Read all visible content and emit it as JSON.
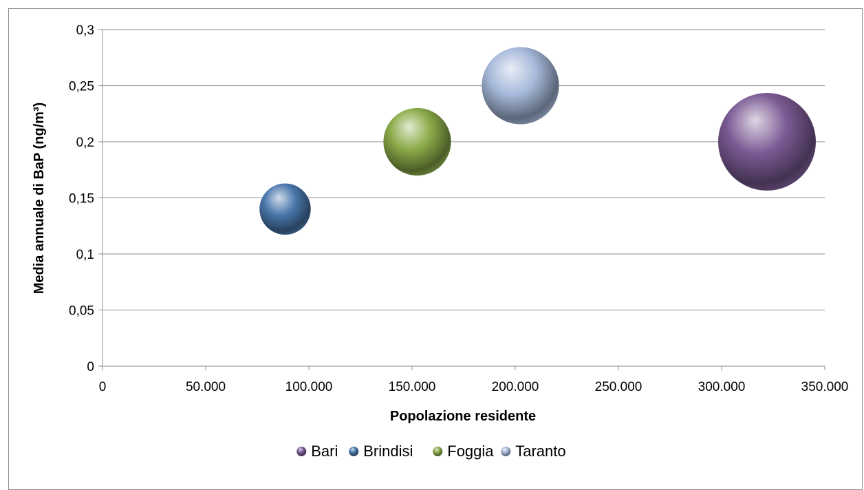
{
  "chart_data": {
    "type": "bubble",
    "title": "",
    "xlabel": "Popolazione residente",
    "ylabel": "Media annuale di BaP (ng/m³)",
    "xlim": [
      0,
      350000
    ],
    "ylim": [
      0,
      0.3
    ],
    "x_ticks": [
      0,
      50000,
      100000,
      150000,
      200000,
      250000,
      300000,
      350000
    ],
    "x_tick_labels": [
      "0",
      "50.000",
      "100.000",
      "150.000",
      "200.000",
      "250.000",
      "300.000",
      "350.000"
    ],
    "y_ticks": [
      0,
      0.05,
      0.1,
      0.15,
      0.2,
      0.25,
      0.3
    ],
    "y_tick_labels": [
      "0",
      "0,05",
      "0,1",
      "0,15",
      "0,2",
      "0,25",
      "0,3"
    ],
    "grid": "horizontal",
    "legend_position": "bottom",
    "series": [
      {
        "name": "Bari",
        "x": 322000,
        "y": 0.2,
        "size": 320000,
        "color": "#7a5a94"
      },
      {
        "name": "Brindisi",
        "x": 88500,
        "y": 0.14,
        "size": 88000,
        "color": "#4a77ab"
      },
      {
        "name": "Foggia",
        "x": 152500,
        "y": 0.2,
        "size": 153000,
        "color": "#8aaa48"
      },
      {
        "name": "Taranto",
        "x": 202500,
        "y": 0.25,
        "size": 200000,
        "color": "#a6b9da"
      }
    ]
  }
}
